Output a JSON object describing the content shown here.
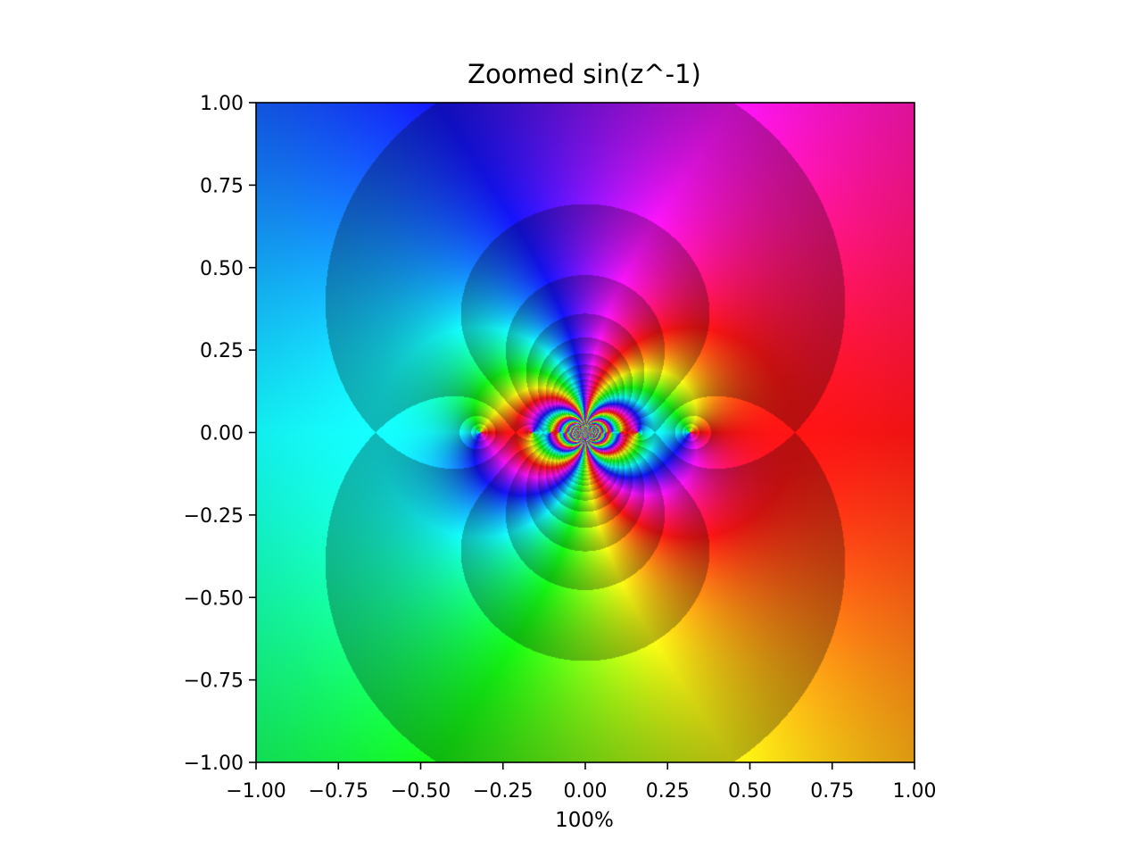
{
  "figure": {
    "title": "Zoomed sin(z^-1)",
    "xlabel": "100%"
  },
  "chart_data": {
    "type": "heatmap",
    "title": "Zoomed sin(z^-1)",
    "xlabel": "100%",
    "ylabel": "",
    "function": "sin(1/z)",
    "coloring": "domain coloring: hue = argument, brightness bands = log modulus",
    "xlim": [
      -1.0,
      1.0
    ],
    "ylim": [
      -1.0,
      1.0
    ],
    "x_ticks": [
      {
        "value": -1.0,
        "label": "−1.00"
      },
      {
        "value": -0.75,
        "label": "−0.75"
      },
      {
        "value": -0.5,
        "label": "−0.50"
      },
      {
        "value": -0.25,
        "label": "−0.25"
      },
      {
        "value": 0.0,
        "label": "0.00"
      },
      {
        "value": 0.25,
        "label": "0.25"
      },
      {
        "value": 0.5,
        "label": "0.50"
      },
      {
        "value": 0.75,
        "label": "0.75"
      },
      {
        "value": 1.0,
        "label": "1.00"
      }
    ],
    "y_ticks": [
      {
        "value": 1.0,
        "label": "1.00"
      },
      {
        "value": 0.75,
        "label": "0.75"
      },
      {
        "value": 0.5,
        "label": "0.50"
      },
      {
        "value": 0.25,
        "label": "0.25"
      },
      {
        "value": 0.0,
        "label": "0.00"
      },
      {
        "value": -0.25,
        "label": "−0.25"
      },
      {
        "value": -0.5,
        "label": "−0.50"
      },
      {
        "value": -0.75,
        "label": "−0.75"
      },
      {
        "value": -1.0,
        "label": "−1.00"
      }
    ],
    "grid": false,
    "legend": "none"
  }
}
